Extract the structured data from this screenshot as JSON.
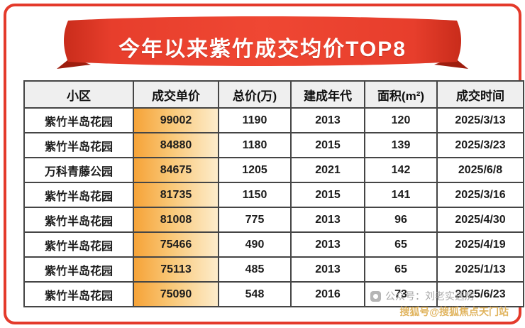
{
  "chart_data": {
    "type": "table",
    "title": "今年以来紫竹成交均价TOP8",
    "columns": [
      "小区",
      "成交单价",
      "总价(万)",
      "建成年代",
      "面积(m²)",
      "成交时间"
    ],
    "rows": [
      [
        "紫竹半岛花园",
        "99002",
        "1190",
        "2013",
        "120",
        "2025/3/13"
      ],
      [
        "紫竹半岛花园",
        "84880",
        "1180",
        "2015",
        "139",
        "2025/3/23"
      ],
      [
        "万科青藤公园",
        "84675",
        "1205",
        "2021",
        "142",
        "2025/6/8"
      ],
      [
        "紫竹半岛花园",
        "81735",
        "1150",
        "2015",
        "141",
        "2025/3/16"
      ],
      [
        "紫竹半岛花园",
        "81008",
        "775",
        "2013",
        "96",
        "2025/4/30"
      ],
      [
        "紫竹半岛花园",
        "75466",
        "490",
        "2013",
        "65",
        "2025/4/19"
      ],
      [
        "紫竹半岛花园",
        "75113",
        "485",
        "2013",
        "65",
        "2025/1/13"
      ],
      [
        "紫竹半岛花园",
        "75090",
        "548",
        "2016",
        "73",
        "2025/6/23"
      ]
    ],
    "highlight_column": "成交单价",
    "layout_hint": "8-row ranking table, unit-price column highlighted with orange gradient"
  },
  "footer": {
    "account_watermark": "公众号：刘老实选房",
    "sohu_watermark": "搜狐号@搜狐焦点天门站"
  },
  "colors": {
    "accent_red": "#e8402f",
    "ribbon_fold": "#9e1d0e",
    "price_gradient_start": "#f6a338",
    "price_gradient_end": "#fdeccb",
    "header_bg": "#efefef",
    "table_border": "#454545",
    "watermark_gray": "#a6a6a6",
    "watermark_gold": "#dfb056"
  }
}
